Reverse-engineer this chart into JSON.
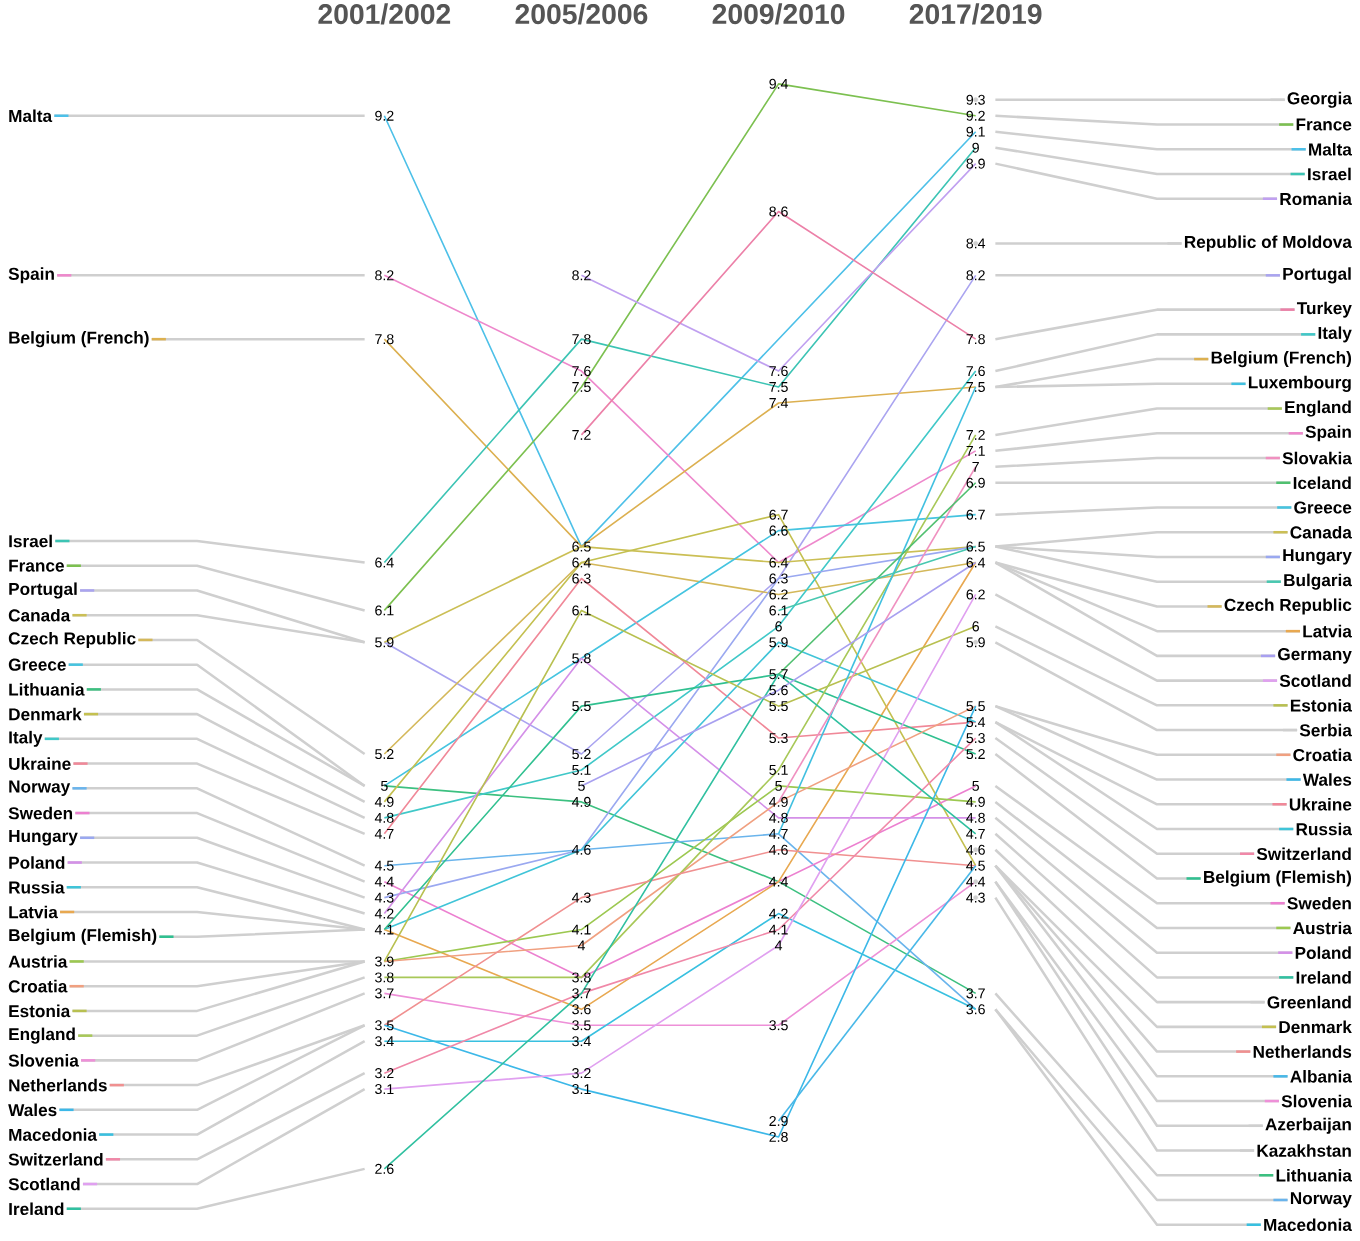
{
  "chart_data": {
    "type": "line",
    "legend": "right",
    "categories": [
      "2001/2002",
      "2005/2006",
      "2009/2010",
      "2017/2019"
    ],
    "series": [
      {
        "name": "Malta",
        "color": "#4dc0e8",
        "values": [
          9.2,
          6.5,
          null,
          9.1
        ],
        "value_labels": [
          "9.2",
          "6.5",
          null,
          "9.1"
        ]
      },
      {
        "name": "Spain",
        "color": "#ee88cc",
        "values": [
          8.2,
          7.6,
          6.4,
          7.1
        ],
        "value_labels": [
          "8.2",
          "7.6",
          "6.4",
          "7.1"
        ]
      },
      {
        "name": "Belgium (French)",
        "color": "#dcb050",
        "values": [
          7.8,
          6.5,
          7.4,
          7.5
        ],
        "value_labels": [
          "7.8",
          null,
          "7.4",
          "7.5"
        ]
      },
      {
        "name": "Israel",
        "color": "#3cc4b4",
        "values": [
          6.4,
          7.8,
          7.5,
          9
        ],
        "value_labels": [
          "6.4",
          "7.8",
          "7.5",
          "9"
        ]
      },
      {
        "name": "France",
        "color": "#7cc050",
        "values": [
          6.1,
          7.5,
          9.4,
          9.2
        ],
        "value_labels": [
          "6.1",
          "7.5",
          "9.4",
          "9.2"
        ]
      },
      {
        "name": "Portugal",
        "color": "#aaa4f0",
        "values": [
          5.9,
          5.2,
          6.3,
          8.2
        ],
        "value_labels": [
          "5.9",
          "5.2",
          "6.3",
          "8.2"
        ]
      },
      {
        "name": "Canada",
        "color": "#cbbf55",
        "values": [
          5.9,
          6.5,
          6.4,
          6.5
        ],
        "value_labels": [
          null,
          null,
          null,
          "6.5"
        ]
      },
      {
        "name": "Czech Republic",
        "color": "#d4b85a",
        "values": [
          5.2,
          6.4,
          6.2,
          6.4
        ],
        "value_labels": [
          "5.2",
          "6.4",
          "6.2",
          "6.4"
        ]
      },
      {
        "name": "Greece",
        "color": "#45c4e0",
        "values": [
          5,
          5.8,
          6.6,
          6.7
        ],
        "value_labels": [
          "5",
          "5.8",
          "6.6",
          "6.7"
        ]
      },
      {
        "name": "Lithuania",
        "color": "#3cc080",
        "values": [
          5,
          4.9,
          4.4,
          3.7
        ],
        "value_labels": [
          null,
          "4.9",
          "4.4",
          "3.7"
        ]
      },
      {
        "name": "Denmark",
        "color": "#c4c050",
        "values": [
          4.9,
          6.4,
          6.7,
          4.5
        ],
        "value_labels": [
          "4.9",
          null,
          "6.7",
          "4.5"
        ]
      },
      {
        "name": "Italy",
        "color": "#40c8c8",
        "values": [
          4.8,
          5.1,
          6,
          7.6
        ],
        "value_labels": [
          "4.8",
          "5.1",
          "6",
          "7.6"
        ]
      },
      {
        "name": "Ukraine",
        "color": "#f08898",
        "values": [
          4.7,
          6.3,
          5.3,
          5.4
        ],
        "value_labels": [
          "4.7",
          "6.3",
          "5.3",
          "5.4"
        ]
      },
      {
        "name": "Norway",
        "color": "#6ab4ec",
        "values": [
          4.5,
          4.6,
          4.7,
          3.6
        ],
        "value_labels": [
          "4.5",
          "4.6",
          "4.7",
          "3.6"
        ]
      },
      {
        "name": "Sweden",
        "color": "#ec80d0",
        "values": [
          4.4,
          3.8,
          4.4,
          5
        ],
        "value_labels": [
          "4.4",
          "3.8",
          null,
          "5"
        ]
      },
      {
        "name": "Hungary",
        "color": "#9aa8f0",
        "values": [
          4.3,
          4.6,
          6.3,
          6.5
        ],
        "value_labels": [
          "4.3",
          null,
          null,
          null
        ]
      },
      {
        "name": "Poland",
        "color": "#d490e8",
        "values": [
          4.2,
          5.8,
          4.8,
          4.8
        ],
        "value_labels": [
          "4.2",
          null,
          "4.8",
          "4.8"
        ]
      },
      {
        "name": "Russia",
        "color": "#40c4d8",
        "values": [
          4.1,
          4.6,
          5.9,
          5.4
        ],
        "value_labels": [
          "4.1",
          null,
          "5.9",
          null
        ]
      },
      {
        "name": "Latvia",
        "color": "#e8a850",
        "values": [
          4.1,
          3.6,
          4.4,
          6.4
        ],
        "value_labels": [
          null,
          "3.6",
          null,
          null
        ]
      },
      {
        "name": "Belgium (Flemish)",
        "color": "#30c090",
        "values": [
          4.1,
          5.5,
          5.7,
          5.2
        ],
        "value_labels": [
          null,
          "5.5",
          "5.7",
          "5.2"
        ]
      },
      {
        "name": "Austria",
        "color": "#9cc850",
        "values": [
          3.9,
          4.1,
          5,
          4.9
        ],
        "value_labels": [
          "3.9",
          "4.1",
          "5",
          "4.9"
        ]
      },
      {
        "name": "Croatia",
        "color": "#f0a080",
        "values": [
          3.9,
          4,
          4.9,
          5.5
        ],
        "value_labels": [
          null,
          "4",
          "4.9",
          "5.5"
        ]
      },
      {
        "name": "Estonia",
        "color": "#b8c050",
        "values": [
          3.9,
          6.1,
          5.5,
          6
        ],
        "value_labels": [
          null,
          "6.1",
          "5.5",
          "6"
        ]
      },
      {
        "name": "England",
        "color": "#a8c858",
        "values": [
          3.8,
          3.8,
          5.1,
          7.2
        ],
        "value_labels": [
          "3.8",
          null,
          "5.1",
          "7.2"
        ]
      },
      {
        "name": "Slovenia",
        "color": "#ee90d8",
        "values": [
          3.7,
          3.5,
          3.5,
          4.4
        ],
        "value_labels": [
          "3.7",
          "3.5",
          "3.5",
          "4.4"
        ]
      },
      {
        "name": "Netherlands",
        "color": "#f09090",
        "values": [
          3.5,
          4.3,
          4.6,
          4.5
        ],
        "value_labels": [
          "3.5",
          "4.3",
          "4.6",
          null
        ]
      },
      {
        "name": "Wales",
        "color": "#3cb8e8",
        "values": [
          3.5,
          3.1,
          2.8,
          5.5
        ],
        "value_labels": [
          null,
          "3.1",
          "2.8",
          null
        ]
      },
      {
        "name": "Macedonia",
        "color": "#38c0e0",
        "values": [
          3.4,
          3.4,
          4.2,
          3.6
        ],
        "value_labels": [
          "3.4",
          "3.4",
          "4.2",
          null
        ]
      },
      {
        "name": "Switzerland",
        "color": "#f088a8",
        "values": [
          3.2,
          3.7,
          4.1,
          5.3
        ],
        "value_labels": [
          "3.2",
          "3.7",
          "4.1",
          "5.3"
        ]
      },
      {
        "name": "Scotland",
        "color": "#e0a0f0",
        "values": [
          3.1,
          3.2,
          4,
          6.2
        ],
        "value_labels": [
          "3.1",
          "3.2",
          "4",
          "6.2"
        ]
      },
      {
        "name": "Ireland",
        "color": "#30c0a0",
        "values": [
          2.6,
          3.7,
          5.7,
          4.7
        ],
        "value_labels": [
          "2.6",
          null,
          null,
          "4.7"
        ]
      },
      {
        "name": "Georgia",
        "marker": "circle",
        "values": [
          null,
          null,
          null,
          9.3
        ],
        "value_labels": [
          null,
          null,
          null,
          "9.3"
        ]
      },
      {
        "name": "Romania",
        "color": "#c0a0f0",
        "values": [
          null,
          8.2,
          7.6,
          8.9
        ],
        "value_labels": [
          null,
          "8.2",
          "7.6",
          "8.9"
        ]
      },
      {
        "name": "Republic of Moldova",
        "marker": "circle",
        "values": [
          null,
          null,
          null,
          8.4
        ],
        "value_labels": [
          null,
          null,
          null,
          "8.4"
        ]
      },
      {
        "name": "Turkey",
        "color": "#ec80a8",
        "values": [
          null,
          7.2,
          8.6,
          7.8
        ],
        "value_labels": [
          null,
          "7.2",
          "8.6",
          "7.8"
        ]
      },
      {
        "name": "Luxembourg",
        "color": "#40c0e0",
        "values": [
          null,
          null,
          4.7,
          7.5
        ],
        "value_labels": [
          null,
          null,
          null,
          null
        ]
      },
      {
        "name": "Slovakia",
        "color": "#f090c0",
        "values": [
          null,
          null,
          4.9,
          7
        ],
        "value_labels": [
          null,
          null,
          null,
          "7"
        ]
      },
      {
        "name": "Iceland",
        "color": "#50c070",
        "values": [
          null,
          null,
          5.7,
          6.9
        ],
        "value_labels": [
          null,
          null,
          null,
          "6.9"
        ]
      },
      {
        "name": "Bulgaria",
        "color": "#48c8b0",
        "values": [
          null,
          null,
          6.1,
          6.5
        ],
        "value_labels": [
          null,
          null,
          "6.1",
          null
        ]
      },
      {
        "name": "Germany",
        "color": "#a8a0f0",
        "values": [
          null,
          5,
          5.6,
          6.4
        ],
        "value_labels": [
          null,
          "5",
          "5.6",
          null
        ]
      },
      {
        "name": "Serbia",
        "marker": "circle",
        "values": [
          null,
          null,
          null,
          5.9
        ],
        "value_labels": [
          null,
          null,
          null,
          "5.9"
        ]
      },
      {
        "name": "Greenland",
        "marker": "circle",
        "values": [
          null,
          null,
          null,
          4.6
        ],
        "value_labels": [
          null,
          null,
          null,
          "4.6"
        ]
      },
      {
        "name": "Albania",
        "color": "#48b8e8",
        "values": [
          null,
          null,
          2.9,
          4.5
        ],
        "value_labels": [
          null,
          null,
          "2.9",
          null
        ]
      },
      {
        "name": "Azerbaijan",
        "marker": "circle",
        "values": [
          null,
          null,
          null,
          4.4
        ],
        "value_labels": [
          null,
          null,
          null,
          null
        ]
      },
      {
        "name": "Kazakhstan",
        "marker": "circle",
        "values": [
          null,
          null,
          null,
          4.3
        ],
        "value_labels": [
          null,
          null,
          null,
          "4.3"
        ]
      }
    ]
  }
}
